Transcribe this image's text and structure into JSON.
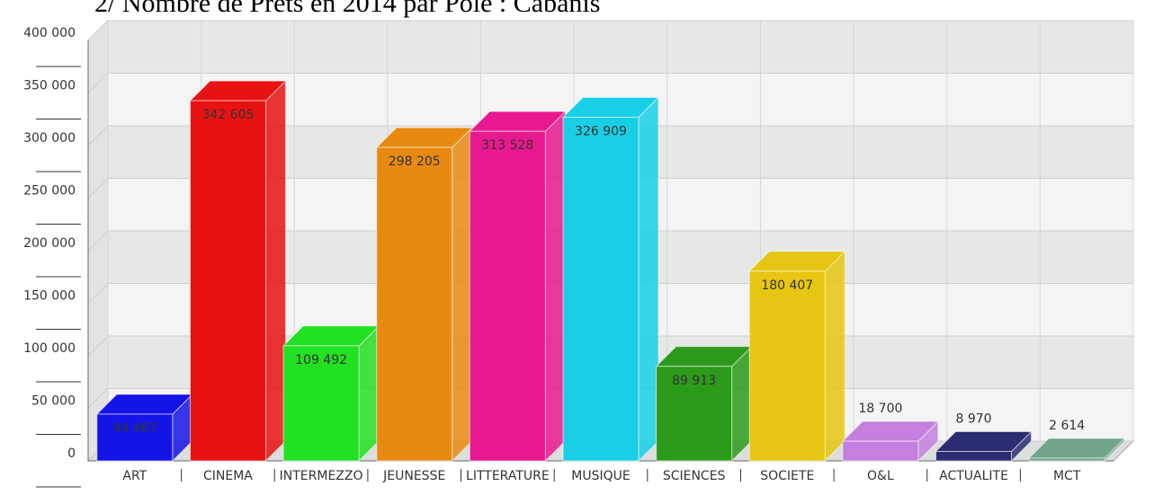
{
  "chart_data": {
    "type": "bar3d",
    "title": "2/ Nombre de Prêts en 2014 par Pôle : Cabanis",
    "categories": [
      "ART",
      "CINEMA",
      "INTERMEZZO",
      "JEUNESSE",
      "LITTERATURE",
      "MUSIQUE",
      "SCIENCES",
      "SOCIETE",
      "O&L",
      "ACTUALITE",
      "MCT"
    ],
    "values": [
      44467,
      342605,
      109492,
      298205,
      313528,
      326909,
      89913,
      180407,
      18700,
      8970,
      2614
    ],
    "value_labels": [
      "44 467",
      "342 605",
      "109 492",
      "298 205",
      "313 528",
      "326 909",
      "89 913",
      "180 407",
      "18 700",
      "8 970",
      "2 614"
    ],
    "colors": [
      "#1414e6",
      "#e81212",
      "#22e022",
      "#e88a12",
      "#e8188e",
      "#18cfe6",
      "#2c9a1a",
      "#e6c612",
      "#c480de",
      "#2c2c72",
      "#72a48a"
    ],
    "ylim": [
      0,
      400000
    ],
    "yticks": [
      0,
      {
        "value": 50000,
        "label": "50 000"
      },
      {
        "value": 100000,
        "label": "100 000"
      },
      {
        "value": 150000,
        "label": "150 000"
      },
      {
        "value": 200000,
        "label": "200 000"
      },
      {
        "value": 250000,
        "label": "250 000"
      },
      {
        "value": 300000,
        "label": "300 000"
      },
      {
        "value": 350000,
        "label": "350 000"
      },
      {
        "value": 400000,
        "label": "400 000"
      }
    ],
    "grid": true
  }
}
